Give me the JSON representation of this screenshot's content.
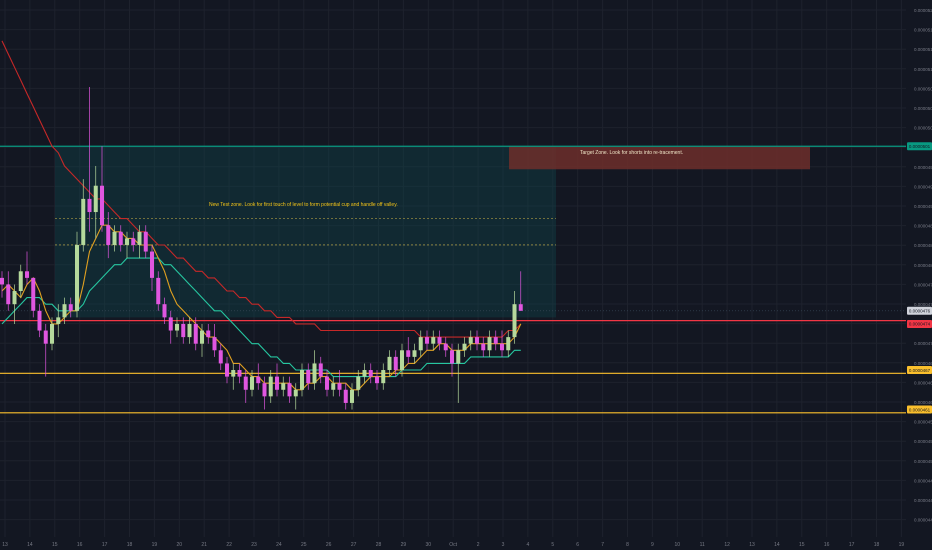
{
  "chart_data": {
    "type": "candlestick",
    "xlabel": "",
    "ylabel": "",
    "legend": {
      "symbol_line": "",
      "lines": [
        "",
        "",
        "",
        ""
      ]
    },
    "x_ticks": [
      "13",
      "14",
      "15",
      "16",
      "17",
      "18",
      "19",
      "20",
      "21",
      "22",
      "23",
      "24",
      "25",
      "26",
      "27",
      "28",
      "29",
      "30",
      "Oct",
      "2",
      "3",
      "4",
      "5",
      "6",
      "7",
      "8",
      "9",
      "10",
      "11",
      "12",
      "13",
      "14",
      "15",
      "16",
      "17",
      "18",
      "19"
    ],
    "y_ticks": [
      "0.0000521",
      "0.0000518",
      "0.0000515",
      "0.0000512",
      "0.0000509",
      "0.0000506",
      "0.0000503",
      "0.0000500",
      "0.0000497",
      "0.0000494",
      "0.0000491",
      "0.0000488",
      "0.0000485",
      "0.0000482",
      "0.0000479",
      "0.0000476",
      "0.0000473",
      "0.0000470",
      "0.0000467",
      "0.0000464",
      "0.0000461",
      "0.0000458",
      "0.0000455",
      "0.0000452",
      "0.0000449",
      "0.0000446",
      "0.0000443"
    ],
    "price_badges": [
      {
        "label": "0.0000501",
        "color": "#089981"
      },
      {
        "label": "0.0000476",
        "color": "#d1d4dc"
      },
      {
        "label": "0.0000474",
        "color": "#f23645"
      },
      {
        "label": "0.0000467",
        "color": "#fbc02d"
      },
      {
        "label": "0.0000461",
        "color": "#fbc02d"
      }
    ],
    "horizontal_levels": [
      {
        "price": 5.01e-05,
        "color": "#089981"
      },
      {
        "price": 4.745e-05,
        "color": "#f23645"
      },
      {
        "price": 4.665e-05,
        "color": "#fbc02d"
      },
      {
        "price": 4.605e-05,
        "color": "#fbc02d"
      }
    ],
    "zones": [
      {
        "name": "test-zone",
        "x_from": 15.3,
        "x_to": 5.1,
        "y_top": 5.01e-05,
        "y_bottom": 4.75e-05,
        "color": "#0e4a4f"
      },
      {
        "name": "target-zone",
        "x_from": 3.3,
        "x_to": 15.1,
        "y_top": 5.01e-05,
        "y_bottom": 4.975e-05,
        "color": "#6d2e2a"
      }
    ],
    "annotations": [
      {
        "text": "Target Zone. Look for shorts into re-tracement.",
        "color": "#f0e6c8"
      },
      {
        "text": "New Test zone. Look for first touch of level to form potential cup and handle off valley.",
        "color": "#f5c518"
      }
    ],
    "candles": [
      {
        "o": 4.81e-05,
        "h": 4.82e-05,
        "l": 4.78e-05,
        "c": 4.8e-05
      },
      {
        "o": 4.8e-05,
        "h": 4.82e-05,
        "l": 4.76e-05,
        "c": 4.77e-05
      },
      {
        "o": 4.77e-05,
        "h": 4.8e-05,
        "l": 4.74e-05,
        "c": 4.79e-05
      },
      {
        "o": 4.79e-05,
        "h": 4.83e-05,
        "l": 4.78e-05,
        "c": 4.82e-05
      },
      {
        "o": 4.82e-05,
        "h": 4.85e-05,
        "l": 4.8e-05,
        "c": 4.81e-05
      },
      {
        "o": 4.81e-05,
        "h": 4.81e-05,
        "l": 4.75e-05,
        "c": 4.76e-05
      },
      {
        "o": 4.76e-05,
        "h": 4.77e-05,
        "l": 4.72e-05,
        "c": 4.73e-05
      },
      {
        "o": 4.73e-05,
        "h": 4.74e-05,
        "l": 4.66e-05,
        "c": 4.71e-05
      },
      {
        "o": 4.71e-05,
        "h": 4.75e-05,
        "l": 4.7e-05,
        "c": 4.74e-05
      },
      {
        "o": 4.74e-05,
        "h": 4.77e-05,
        "l": 4.72e-05,
        "c": 4.75e-05
      },
      {
        "o": 4.75e-05,
        "h": 4.78e-05,
        "l": 4.74e-05,
        "c": 4.77e-05
      },
      {
        "o": 4.77e-05,
        "h": 4.78e-05,
        "l": 4.75e-05,
        "c": 4.76e-05
      },
      {
        "o": 4.76e-05,
        "h": 4.88e-05,
        "l": 4.75e-05,
        "c": 4.86e-05
      },
      {
        "o": 4.86e-05,
        "h": 4.96e-05,
        "l": 4.85e-05,
        "c": 4.93e-05
      },
      {
        "o": 4.93e-05,
        "h": 5.1e-05,
        "l": 4.88e-05,
        "c": 4.91e-05
      },
      {
        "o": 4.91e-05,
        "h": 4.98e-05,
        "l": 4.87e-05,
        "c": 4.95e-05
      },
      {
        "o": 4.95e-05,
        "h": 5.01e-05,
        "l": 4.88e-05,
        "c": 4.89e-05
      },
      {
        "o": 4.89e-05,
        "h": 4.91e-05,
        "l": 4.84e-05,
        "c": 4.86e-05
      },
      {
        "o": 4.86e-05,
        "h": 4.89e-05,
        "l": 4.85e-05,
        "c": 4.88e-05
      },
      {
        "o": 4.88e-05,
        "h": 4.89e-05,
        "l": 4.85e-05,
        "c": 4.86e-05
      },
      {
        "o": 4.86e-05,
        "h": 4.88e-05,
        "l": 4.84e-05,
        "c": 4.87e-05
      },
      {
        "o": 4.87e-05,
        "h": 4.88e-05,
        "l": 4.85e-05,
        "c": 4.86e-05
      },
      {
        "o": 4.86e-05,
        "h": 4.89e-05,
        "l": 4.84e-05,
        "c": 4.88e-05
      },
      {
        "o": 4.88e-05,
        "h": 4.89e-05,
        "l": 4.84e-05,
        "c": 4.85e-05
      },
      {
        "o": 4.85e-05,
        "h": 4.86e-05,
        "l": 4.79e-05,
        "c": 4.81e-05
      },
      {
        "o": 4.81e-05,
        "h": 4.82e-05,
        "l": 4.76e-05,
        "c": 4.77e-05
      },
      {
        "o": 4.77e-05,
        "h": 4.78e-05,
        "l": 4.74e-05,
        "c": 4.75e-05
      },
      {
        "o": 4.75e-05,
        "h": 4.76e-05,
        "l": 4.71e-05,
        "c": 4.73e-05
      },
      {
        "o": 4.73e-05,
        "h": 4.75e-05,
        "l": 4.72e-05,
        "c": 4.74e-05
      },
      {
        "o": 4.74e-05,
        "h": 4.75e-05,
        "l": 4.71e-05,
        "c": 4.72e-05
      },
      {
        "o": 4.72e-05,
        "h": 4.75e-05,
        "l": 4.71e-05,
        "c": 4.74e-05
      },
      {
        "o": 4.74e-05,
        "h": 4.75e-05,
        "l": 4.7e-05,
        "c": 4.71e-05
      },
      {
        "o": 4.71e-05,
        "h": 4.74e-05,
        "l": 4.69e-05,
        "c": 4.73e-05
      },
      {
        "o": 4.73e-05,
        "h": 4.74e-05,
        "l": 4.71e-05,
        "c": 4.72e-05
      },
      {
        "o": 4.72e-05,
        "h": 4.74e-05,
        "l": 4.69e-05,
        "c": 4.7e-05
      },
      {
        "o": 4.7e-05,
        "h": 4.71e-05,
        "l": 4.67e-05,
        "c": 4.68e-05
      },
      {
        "o": 4.68e-05,
        "h": 4.69e-05,
        "l": 4.65e-05,
        "c": 4.66e-05
      },
      {
        "o": 4.66e-05,
        "h": 4.68e-05,
        "l": 4.64e-05,
        "c": 4.67e-05
      },
      {
        "o": 4.67e-05,
        "h": 4.68e-05,
        "l": 4.65e-05,
        "c": 4.66e-05
      },
      {
        "o": 4.66e-05,
        "h": 4.67e-05,
        "l": 4.62e-05,
        "c": 4.64e-05
      },
      {
        "o": 4.64e-05,
        "h": 4.67e-05,
        "l": 4.63e-05,
        "c": 4.66e-05
      },
      {
        "o": 4.66e-05,
        "h": 4.68e-05,
        "l": 4.64e-05,
        "c": 4.65e-05
      },
      {
        "o": 4.65e-05,
        "h": 4.66e-05,
        "l": 4.61e-05,
        "c": 4.63e-05
      },
      {
        "o": 4.63e-05,
        "h": 4.67e-05,
        "l": 4.62e-05,
        "c": 4.66e-05
      },
      {
        "o": 4.66e-05,
        "h": 4.68e-05,
        "l": 4.63e-05,
        "c": 4.64e-05
      },
      {
        "o": 4.64e-05,
        "h": 4.66e-05,
        "l": 4.63e-05,
        "c": 4.65e-05
      },
      {
        "o": 4.65e-05,
        "h": 4.66e-05,
        "l": 4.62e-05,
        "c": 4.63e-05
      },
      {
        "o": 4.63e-05,
        "h": 4.65e-05,
        "l": 4.61e-05,
        "c": 4.64e-05
      },
      {
        "o": 4.64e-05,
        "h": 4.68e-05,
        "l": 4.63e-05,
        "c": 4.67e-05
      },
      {
        "o": 4.67e-05,
        "h": 4.68e-05,
        "l": 4.64e-05,
        "c": 4.65e-05
      },
      {
        "o": 4.65e-05,
        "h": 4.7e-05,
        "l": 4.64e-05,
        "c": 4.68e-05
      },
      {
        "o": 4.68e-05,
        "h": 4.69e-05,
        "l": 4.65e-05,
        "c": 4.66e-05
      },
      {
        "o": 4.66e-05,
        "h": 4.67e-05,
        "l": 4.63e-05,
        "c": 4.64e-05
      },
      {
        "o": 4.64e-05,
        "h": 4.66e-05,
        "l": 4.63e-05,
        "c": 4.65e-05
      },
      {
        "o": 4.65e-05,
        "h": 4.67e-05,
        "l": 4.63e-05,
        "c": 4.64e-05
      },
      {
        "o": 4.64e-05,
        "h": 4.65e-05,
        "l": 4.61e-05,
        "c": 4.62e-05
      },
      {
        "o": 4.62e-05,
        "h": 4.65e-05,
        "l": 4.61e-05,
        "c": 4.64e-05
      },
      {
        "o": 4.64e-05,
        "h": 4.67e-05,
        "l": 4.63e-05,
        "c": 4.66e-05
      },
      {
        "o": 4.66e-05,
        "h": 4.68e-05,
        "l": 4.65e-05,
        "c": 4.67e-05
      },
      {
        "o": 4.67e-05,
        "h": 4.68e-05,
        "l": 4.65e-05,
        "c": 4.66e-05
      },
      {
        "o": 4.66e-05,
        "h": 4.67e-05,
        "l": 4.64e-05,
        "c": 4.65e-05
      },
      {
        "o": 4.65e-05,
        "h": 4.68e-05,
        "l": 4.64e-05,
        "c": 4.67e-05
      },
      {
        "o": 4.67e-05,
        "h": 4.7e-05,
        "l": 4.66e-05,
        "c": 4.69e-05
      },
      {
        "o": 4.69e-05,
        "h": 4.7e-05,
        "l": 4.66e-05,
        "c": 4.67e-05
      },
      {
        "o": 4.67e-05,
        "h": 4.71e-05,
        "l": 4.66e-05,
        "c": 4.7e-05
      },
      {
        "o": 4.7e-05,
        "h": 4.72e-05,
        "l": 4.68e-05,
        "c": 4.69e-05
      },
      {
        "o": 4.69e-05,
        "h": 4.71e-05,
        "l": 4.68e-05,
        "c": 4.7e-05
      },
      {
        "o": 4.7e-05,
        "h": 4.73e-05,
        "l": 4.69e-05,
        "c": 4.72e-05
      },
      {
        "o": 4.72e-05,
        "h": 4.73e-05,
        "l": 4.7e-05,
        "c": 4.71e-05
      },
      {
        "o": 4.71e-05,
        "h": 4.73e-05,
        "l": 4.7e-05,
        "c": 4.72e-05
      },
      {
        "o": 4.72e-05,
        "h": 4.73e-05,
        "l": 4.7e-05,
        "c": 4.71e-05
      },
      {
        "o": 4.71e-05,
        "h": 4.72e-05,
        "l": 4.69e-05,
        "c": 4.7e-05
      },
      {
        "o": 4.7e-05,
        "h": 4.71e-05,
        "l": 4.66e-05,
        "c": 4.68e-05
      },
      {
        "o": 4.68e-05,
        "h": 4.71e-05,
        "l": 4.62e-05,
        "c": 4.7e-05
      },
      {
        "o": 4.7e-05,
        "h": 4.72e-05,
        "l": 4.69e-05,
        "c": 4.71e-05
      },
      {
        "o": 4.71e-05,
        "h": 4.73e-05,
        "l": 4.7e-05,
        "c": 4.72e-05
      },
      {
        "o": 4.72e-05,
        "h": 4.73e-05,
        "l": 4.7e-05,
        "c": 4.71e-05
      },
      {
        "o": 4.71e-05,
        "h": 4.72e-05,
        "l": 4.69e-05,
        "c": 4.7e-05
      },
      {
        "o": 4.7e-05,
        "h": 4.73e-05,
        "l": 4.69e-05,
        "c": 4.72e-05
      },
      {
        "o": 4.72e-05,
        "h": 4.73e-05,
        "l": 4.7e-05,
        "c": 4.71e-05
      },
      {
        "o": 4.71e-05,
        "h": 4.73e-05,
        "l": 4.69e-05,
        "c": 4.7e-05
      },
      {
        "o": 4.7e-05,
        "h": 4.73e-05,
        "l": 4.69e-05,
        "c": 4.72e-05
      },
      {
        "o": 4.72e-05,
        "h": 4.79e-05,
        "l": 4.71e-05,
        "c": 4.77e-05
      },
      {
        "o": 4.77e-05,
        "h": 4.82e-05,
        "l": 4.76e-05,
        "c": 4.76e-05
      }
    ],
    "ema_fast": [
      4.79e-05,
      4.8e-05,
      4.79e-05,
      4.78e-05,
      4.8e-05,
      4.81e-05,
      4.79e-05,
      4.76e-05,
      4.74e-05,
      4.74e-05,
      4.75e-05,
      4.76e-05,
      4.76e-05,
      4.8e-05,
      4.85e-05,
      4.87e-05,
      4.89e-05,
      4.89e-05,
      4.88e-05,
      4.88e-05,
      4.87e-05,
      4.87e-05,
      4.86e-05,
      4.86e-05,
      4.86e-05,
      4.84e-05,
      4.82e-05,
      4.79e-05,
      4.77e-05,
      4.76e-05,
      4.75e-05,
      4.74e-05,
      4.73e-05,
      4.72e-05,
      4.72e-05,
      4.71e-05,
      4.7e-05,
      4.68e-05,
      4.68e-05,
      4.67e-05,
      4.66e-05,
      4.66e-05,
      4.65e-05,
      4.65e-05,
      4.65e-05,
      4.65e-05,
      4.65e-05,
      4.64e-05,
      4.64e-05,
      4.65e-05,
      4.65e-05,
      4.66e-05,
      4.66e-05,
      4.65e-05,
      4.65e-05,
      4.65e-05,
      4.64e-05,
      4.64e-05,
      4.65e-05,
      4.66e-05,
      4.66e-05,
      4.66e-05,
      4.66e-05,
      4.67e-05,
      4.67e-05,
      4.68e-05,
      4.68e-05,
      4.69e-05,
      4.7e-05,
      4.7e-05,
      4.71e-05,
      4.71e-05,
      4.7e-05,
      4.7e-05,
      4.7e-05,
      4.71e-05,
      4.71e-05,
      4.71e-05,
      4.71e-05,
      4.71e-05,
      4.71e-05,
      4.71e-05,
      4.72e-05,
      4.74e-05
    ],
    "ema_slow": [
      4.74e-05,
      4.75e-05,
      4.76e-05,
      4.77e-05,
      4.78e-05,
      4.78e-05,
      4.78e-05,
      4.77e-05,
      4.77e-05,
      4.76e-05,
      4.76e-05,
      4.76e-05,
      4.76e-05,
      4.77e-05,
      4.79e-05,
      4.8e-05,
      4.81e-05,
      4.82e-05,
      4.83e-05,
      4.83e-05,
      4.84e-05,
      4.84e-05,
      4.84e-05,
      4.84e-05,
      4.84e-05,
      4.84e-05,
      4.83e-05,
      4.83e-05,
      4.82e-05,
      4.81e-05,
      4.8e-05,
      4.79e-05,
      4.78e-05,
      4.77e-05,
      4.76e-05,
      4.76e-05,
      4.75e-05,
      4.74e-05,
      4.73e-05,
      4.72e-05,
      4.71e-05,
      4.71e-05,
      4.7e-05,
      4.69e-05,
      4.69e-05,
      4.68e-05,
      4.68e-05,
      4.67e-05,
      4.67e-05,
      4.67e-05,
      4.67e-05,
      4.67e-05,
      4.67e-05,
      4.66e-05,
      4.66e-05,
      4.66e-05,
      4.66e-05,
      4.66e-05,
      4.66e-05,
      4.66e-05,
      4.66e-05,
      4.66e-05,
      4.66e-05,
      4.66e-05,
      4.67e-05,
      4.67e-05,
      4.67e-05,
      4.67e-05,
      4.68e-05,
      4.68e-05,
      4.68e-05,
      4.68e-05,
      4.68e-05,
      4.68e-05,
      4.68e-05,
      4.69e-05,
      4.69e-05,
      4.69e-05,
      4.69e-05,
      4.69e-05,
      4.69e-05,
      4.69e-05,
      4.7e-05,
      4.7e-05
    ],
    "ma_red": [
      5.17e-05,
      5.15e-05,
      5.13e-05,
      5.11e-05,
      5.09e-05,
      5.07e-05,
      5.05e-05,
      5.03e-05,
      5.01e-05,
      5e-05,
      4.98e-05,
      4.97e-05,
      4.96e-05,
      4.95e-05,
      4.94e-05,
      4.93e-05,
      4.93e-05,
      4.92e-05,
      4.91e-05,
      4.9e-05,
      4.9e-05,
      4.89e-05,
      4.88e-05,
      4.88e-05,
      4.87e-05,
      4.86e-05,
      4.86e-05,
      4.85e-05,
      4.84e-05,
      4.84e-05,
      4.83e-05,
      4.82e-05,
      4.82e-05,
      4.81e-05,
      4.81e-05,
      4.8e-05,
      4.79e-05,
      4.79e-05,
      4.78e-05,
      4.78e-05,
      4.77e-05,
      4.77e-05,
      4.76e-05,
      4.76e-05,
      4.75e-05,
      4.75e-05,
      4.75e-05,
      4.74e-05,
      4.74e-05,
      4.74e-05,
      4.74e-05,
      4.73e-05,
      4.73e-05,
      4.73e-05,
      4.73e-05,
      4.73e-05,
      4.73e-05,
      4.73e-05,
      4.73e-05,
      4.73e-05,
      4.73e-05,
      4.73e-05,
      4.73e-05,
      4.73e-05,
      4.73e-05,
      4.73e-05,
      4.73e-05,
      4.72e-05,
      4.72e-05,
      4.72e-05,
      4.72e-05,
      4.72e-05,
      4.72e-05,
      4.72e-05,
      4.72e-05,
      4.72e-05,
      4.72e-05,
      4.72e-05,
      4.72e-05,
      4.72e-05,
      4.72e-05,
      4.73e-05,
      4.73e-05,
      4.74e-05
    ]
  }
}
